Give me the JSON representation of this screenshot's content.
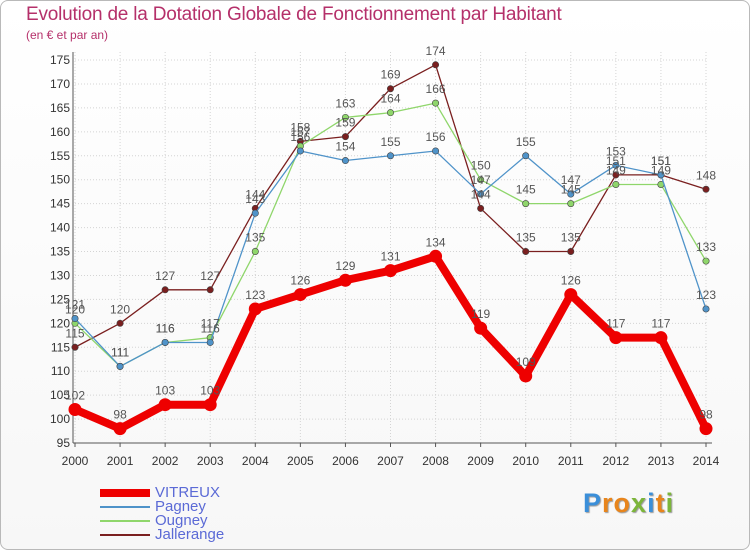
{
  "title": "Evolution de la Dotation Globale de Fonctionnement par Habitant",
  "subtitle": "(en € et par an)",
  "logo": {
    "text": "Proxiti",
    "letters": [
      {
        "ch": "P",
        "color": "#3b8fd9"
      },
      {
        "ch": "r",
        "color": "#e8851c"
      },
      {
        "ch": "o",
        "color": "#e8851c"
      },
      {
        "ch": "x",
        "color": "#7cb53a"
      },
      {
        "ch": "i",
        "color": "#3b8fd9"
      },
      {
        "ch": "t",
        "color": "#e8851c"
      },
      {
        "ch": "i",
        "color": "#7cb53a"
      }
    ]
  },
  "chart_data": {
    "type": "line",
    "title": "Evolution de la Dotation Globale de Fonctionnement par Habitant",
    "subtitle": "(en € et par an)",
    "x": [
      2000,
      2001,
      2002,
      2003,
      2004,
      2005,
      2006,
      2007,
      2008,
      2009,
      2010,
      2011,
      2012,
      2013,
      2014
    ],
    "ylim": [
      95,
      175
    ],
    "yticks": [
      95,
      100,
      105,
      110,
      115,
      120,
      125,
      130,
      135,
      140,
      145,
      150,
      155,
      160,
      165,
      170,
      175
    ],
    "grid": true,
    "legend_position": "bottom-left",
    "series": [
      {
        "name": "Jallerange",
        "color": "#7a1f1f",
        "values": [
          115,
          120,
          127,
          127,
          144,
          158,
          159,
          169,
          174,
          144,
          135,
          135,
          151,
          151,
          148
        ]
      },
      {
        "name": "Ougney",
        "color": "#8fd66b",
        "values": [
          120,
          111,
          116,
          117,
          135,
          157,
          163,
          164,
          166,
          150,
          145,
          145,
          149,
          149,
          133
        ]
      },
      {
        "name": "Pagney",
        "color": "#4f93c9",
        "values": [
          121,
          111,
          116,
          116,
          143,
          156,
          154,
          155,
          156,
          147,
          155,
          147,
          153,
          151,
          123
        ]
      },
      {
        "name": "VITREUX",
        "color": "#ee0000",
        "values": [
          102,
          98,
          103,
          103,
          123,
          126,
          129,
          131,
          134,
          119,
          109,
          126,
          117,
          117,
          98
        ],
        "emphasis": true
      }
    ],
    "legend": [
      "VITREUX",
      "Pagney",
      "Ougney",
      "Jallerange"
    ]
  }
}
